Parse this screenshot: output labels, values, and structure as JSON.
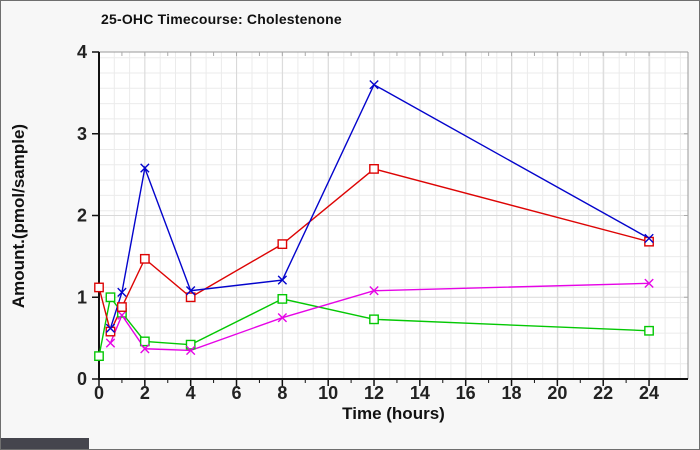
{
  "window": {
    "background": "#f7f7f7",
    "border_color": "#6f6f6f",
    "corner_fragment_color": "#45454d"
  },
  "chart_data": {
    "type": "line",
    "title": "25-OHC Timecourse: Cholestenone",
    "xlabel": "Time (hours)",
    "ylabel": "Amount.(pmol/sample)",
    "xlim": [
      0,
      25.7
    ],
    "ylim": [
      0,
      4
    ],
    "x_ticks": [
      0,
      2,
      4,
      6,
      8,
      10,
      12,
      14,
      16,
      18,
      20,
      22,
      24
    ],
    "x_minor_step": 1,
    "y_ticks": [
      0,
      1,
      2,
      3,
      4
    ],
    "grid": true,
    "legend_position": "none",
    "axis_color": "#111111",
    "major_grid_color": "#d9d9d9",
    "mesh_color": "#ebebeb",
    "series": [
      {
        "name": "green-series",
        "color": "#04c804",
        "marker": "square",
        "points": [
          [
            0,
            0.28
          ],
          [
            0.5,
            1.0
          ],
          [
            1,
            0.81
          ],
          [
            2,
            0.46
          ],
          [
            4,
            0.42
          ],
          [
            8,
            0.98
          ],
          [
            12,
            0.73
          ],
          [
            24,
            0.59
          ]
        ]
      },
      {
        "name": "magenta-series",
        "color": "#e604e6",
        "marker": "x",
        "points": [
          [
            0.5,
            0.44
          ],
          [
            1,
            0.78
          ],
          [
            2,
            0.37
          ],
          [
            4,
            0.35
          ],
          [
            8,
            0.75
          ],
          [
            12,
            1.08
          ],
          [
            24,
            1.17
          ]
        ]
      },
      {
        "name": "red-series",
        "color": "#dd0404",
        "marker": "square",
        "points": [
          [
            0,
            1.12
          ],
          [
            0.5,
            0.58
          ],
          [
            1,
            0.88
          ],
          [
            2,
            1.47
          ],
          [
            4,
            1.0
          ],
          [
            8,
            1.65
          ],
          [
            12,
            2.57
          ],
          [
            24,
            1.68
          ]
        ]
      },
      {
        "name": "blue-series",
        "color": "#0404cc",
        "marker": "x",
        "points": [
          [
            0.5,
            0.62
          ],
          [
            1,
            1.06
          ],
          [
            2,
            2.58
          ],
          [
            4,
            1.08
          ],
          [
            8,
            1.21
          ],
          [
            12,
            3.6
          ],
          [
            24,
            1.72
          ]
        ]
      }
    ]
  }
}
